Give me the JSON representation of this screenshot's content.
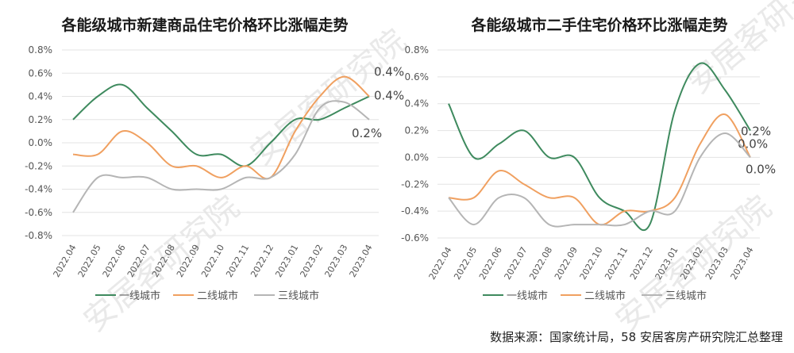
{
  "source_note": "数据来源：国家统计局，58 安居客房产研究院汇总整理",
  "watermark": "安居客研究院",
  "chart_data": [
    {
      "type": "line",
      "title": "各能级城市新建商品住宅价格环比涨幅走势",
      "categories": [
        "2022.04",
        "2022.05",
        "2022.06",
        "2022.07",
        "2022.08",
        "2022.09",
        "2022.10",
        "2022.11",
        "2022.12",
        "2023.01",
        "2023.02",
        "2023.03",
        "2023.04"
      ],
      "ylim": [
        -0.8,
        0.8
      ],
      "yticks": [
        "0.8%",
        "0.6%",
        "0.4%",
        "0.2%",
        "0.0%",
        "-0.2%",
        "-0.4%",
        "-0.6%",
        "-0.8%"
      ],
      "grid": true,
      "legend": "bottom",
      "series": [
        {
          "name": "一线城市",
          "color": "#3e8a5e",
          "values": [
            0.2,
            0.4,
            0.5,
            0.3,
            0.1,
            -0.1,
            -0.1,
            -0.2,
            0.0,
            0.2,
            0.2,
            0.3,
            0.4
          ],
          "end_label": "0.4%"
        },
        {
          "name": "二线城市",
          "color": "#f0a060",
          "values": [
            -0.1,
            -0.1,
            0.1,
            0.0,
            -0.2,
            -0.2,
            -0.3,
            -0.2,
            -0.3,
            0.1,
            0.4,
            0.57,
            0.4
          ],
          "end_label": "0.4%"
        },
        {
          "name": "三线城市",
          "color": "#b5b5b5",
          "values": [
            -0.6,
            -0.3,
            -0.3,
            -0.3,
            -0.4,
            -0.4,
            -0.4,
            -0.3,
            -0.3,
            -0.1,
            0.3,
            0.35,
            0.2
          ],
          "end_label": "0.2%"
        }
      ]
    },
    {
      "type": "line",
      "title": "各能级城市二手住宅价格环比涨幅走势",
      "categories": [
        "2022.04",
        "2022.05",
        "2022.06",
        "2022.07",
        "2022.08",
        "2022.09",
        "2022.10",
        "2022.11",
        "2022.12",
        "2023.01",
        "2023.02",
        "2023.03",
        "2023.04"
      ],
      "ylim": [
        -0.6,
        0.8
      ],
      "yticks": [
        "0.8%",
        "0.6%",
        "0.4%",
        "0.2%",
        "0.0%",
        "-0.2%",
        "-0.4%",
        "-0.6%"
      ],
      "grid": true,
      "legend": "bottom",
      "series": [
        {
          "name": "一线城市",
          "color": "#3e8a5e",
          "values": [
            0.4,
            0.0,
            0.1,
            0.2,
            0.0,
            0.0,
            -0.3,
            -0.4,
            -0.5,
            0.35,
            0.7,
            0.5,
            0.2
          ],
          "end_label": "0.2%"
        },
        {
          "name": "二线城市",
          "color": "#f0a060",
          "values": [
            -0.3,
            -0.3,
            -0.1,
            -0.2,
            -0.3,
            -0.3,
            -0.5,
            -0.4,
            -0.4,
            -0.3,
            0.1,
            0.32,
            0.0
          ],
          "end_label": "0.0%"
        },
        {
          "name": "三线城市",
          "color": "#b5b5b5",
          "values": [
            -0.3,
            -0.5,
            -0.3,
            -0.3,
            -0.5,
            -0.5,
            -0.5,
            -0.5,
            -0.4,
            -0.4,
            0.0,
            0.18,
            0.0
          ],
          "end_label": "0.0%"
        }
      ]
    }
  ]
}
